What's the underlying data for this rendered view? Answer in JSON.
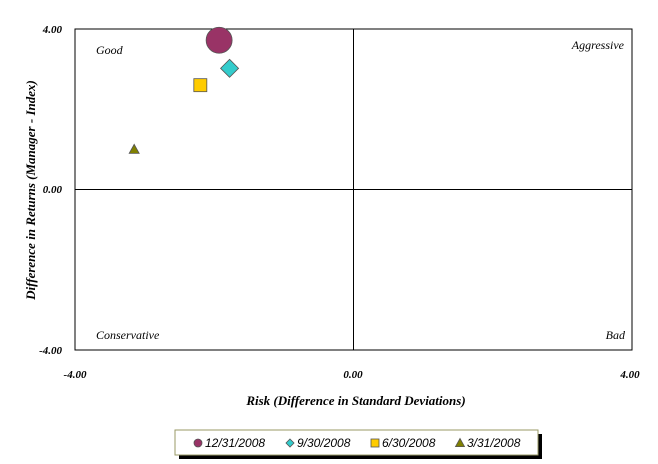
{
  "chart_data": {
    "type": "scatter",
    "title": "",
    "xlabel": "Risk (Difference in Standard Deviations)",
    "ylabel": "Difference in Returns (Manager - Index)",
    "xlim": [
      -4,
      4
    ],
    "ylim": [
      -4,
      4
    ],
    "x_ticks": [
      "-4.00",
      "0.00",
      "4.00"
    ],
    "y_ticks": [
      "-4.00",
      "0.00",
      "4.00"
    ],
    "quadrant_labels": {
      "top_left": "Good",
      "top_right": "Aggressive",
      "bottom_left": "Conservative",
      "bottom_right": "Bad"
    },
    "legend_position": "bottom",
    "series": [
      {
        "name": "12/31/2008",
        "marker": "circle",
        "color": "#993366",
        "x": -1.93,
        "y": 3.72
      },
      {
        "name": "9/30/2008",
        "marker": "diamond",
        "color": "#33CCCC",
        "x": -1.78,
        "y": 3.02
      },
      {
        "name": "6/30/2008",
        "marker": "square",
        "color": "#FFCC00",
        "x": -2.2,
        "y": 2.6
      },
      {
        "name": "3/31/2008",
        "marker": "triangle",
        "color": "#808000",
        "x": -3.15,
        "y": 1.0
      }
    ]
  }
}
